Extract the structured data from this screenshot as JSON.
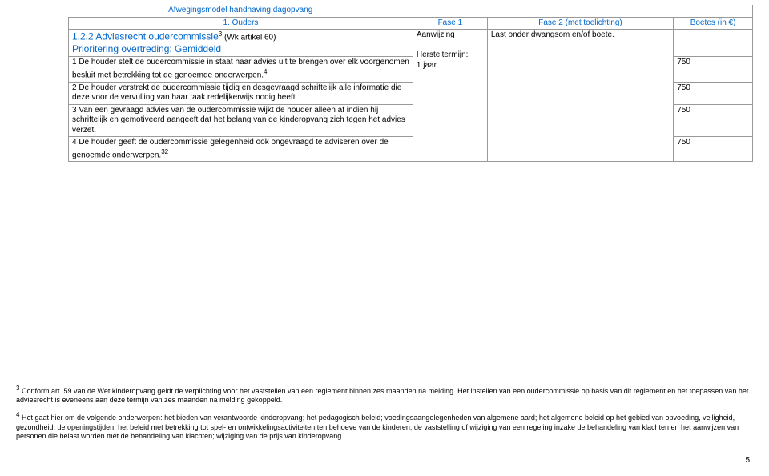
{
  "header": {
    "title": "Afwegingsmodel handhaving dagopvang",
    "section": "1. Ouders",
    "col_fase1": "Fase 1",
    "col_fase2": "Fase 2 (met toelichting)",
    "col_boetes": "Boetes (in €)"
  },
  "subsection": {
    "code": "1.2.2 Adviesrecht oudercommissie",
    "ref": " (Wk artikel 60)",
    "priority": "Prioritering overtreding: Gemiddeld",
    "fase1a": "Aanwijzing",
    "fase2a": "Last onder dwangsom en/of boete.",
    "fase1b_line1": "Hersteltermijn:",
    "fase1b_line2": "1 jaar"
  },
  "rows": [
    {
      "text": "1 De houder stelt de oudercommissie in staat haar advies uit te brengen over elk voorgenomen besluit met betrekking tot de genoemde onderwerpen.",
      "sup": "4",
      "boete": "750"
    },
    {
      "text": "2 De houder verstrekt de oudercommissie tijdig en desgevraagd schriftelijk alle informatie die deze voor de vervulling van haar taak redelijkerwijs nodig heeft.",
      "sup": "",
      "boete": "750"
    },
    {
      "text": "3 Van een gevraagd advies van de oudercommissie wijkt de houder alleen af indien hij schriftelijk en gemotiveerd aangeeft dat het belang van de kinderopvang zich tegen het advies verzet.",
      "sup": "",
      "boete": "750"
    },
    {
      "text": "4 De houder geeft de oudercommissie gelegenheid ook ongevraagd te adviseren over de genoemde onderwerpen.",
      "sup": "32",
      "boete": "750"
    }
  ],
  "footnotes": {
    "f3_num": "3",
    "f3_text": " Conform art. 59 van de Wet kinderopvang geldt de verplichting voor het vaststellen van een reglement binnen zes maanden na melding. Het instellen van een oudercommissie op basis van dit reglement en het toepassen van het adviesrecht is eveneens aan deze termijn van zes maanden na melding gekoppeld.",
    "f4_num": "4",
    "f4_text": " Het gaat hier om de volgende onderwerpen: het bieden van verantwoorde kinderopvang; het pedagogisch beleid; voedingsaangelegenheden van algemene aard; het algemene beleid op het gebied van opvoeding, veiligheid, gezondheid; de openingstijden; het beleid met betrekking tot spel- en ontwikkelingsactiviteiten ten behoeve van de kinderen; de vaststelling of wijziging van een regeling inzake de behandeling van klachten en het aanwijzen van personen die belast worden met de behandeling van klachten; wijziging van de prijs van kinderopvang."
  },
  "page_num": "5"
}
